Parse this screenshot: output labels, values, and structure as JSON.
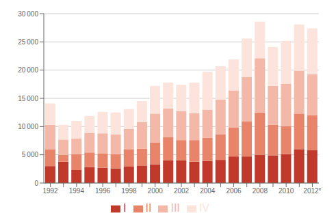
{
  "chart_data": {
    "type": "bar",
    "stacked": true,
    "grid": true,
    "legend": "bottom",
    "categories": [
      "1992",
      null,
      "1994",
      null,
      "1996",
      null,
      "1998",
      null,
      "2000",
      null,
      "2002",
      null,
      "2004",
      null,
      "2006",
      null,
      "2008",
      null,
      "2010",
      null,
      "2012*"
    ],
    "series": [
      {
        "name": "I",
        "color": "#c0392b",
        "values": [
          3000,
          3800,
          2300,
          2800,
          2700,
          2600,
          2900,
          3100,
          3300,
          4000,
          4000,
          3800,
          3900,
          4100,
          4700,
          4700,
          5000,
          4900,
          5100,
          6000,
          5800
        ]
      },
      {
        "name": "II",
        "color": "#e8846a",
        "values": [
          3000,
          1200,
          2800,
          2600,
          2500,
          2500,
          3100,
          3000,
          3900,
          4100,
          3600,
          3800,
          4100,
          4500,
          5100,
          6200,
          7500,
          5400,
          5000,
          6300,
          6200
        ]
      },
      {
        "name": "III",
        "color": "#f4b8a8",
        "values": [
          4300,
          2700,
          2800,
          3500,
          3600,
          3500,
          3600,
          4700,
          5100,
          5100,
          5100,
          4800,
          5000,
          6200,
          6600,
          7900,
          9600,
          6900,
          7500,
          7600,
          7300
        ]
      },
      {
        "name": "IV",
        "color": "#fce4dc",
        "values": [
          3800,
          2600,
          3100,
          3000,
          3800,
          3900,
          3500,
          3700,
          4900,
          4600,
          4700,
          5400,
          6700,
          5900,
          5500,
          6800,
          6500,
          6900,
          7600,
          8200,
          8100
        ]
      }
    ],
    "ylim": [
      0,
      30000
    ],
    "yticks": [
      0,
      {
        "value": 5000,
        "label": "5 000"
      },
      {
        "value": 10000,
        "label": "10 000"
      },
      {
        "value": 15000,
        "label": "15 000"
      },
      {
        "value": 20000,
        "label": "20 000"
      },
      {
        "value": 25000,
        "label": "25 000"
      },
      {
        "value": 30000,
        "label": "30 000"
      }
    ]
  }
}
